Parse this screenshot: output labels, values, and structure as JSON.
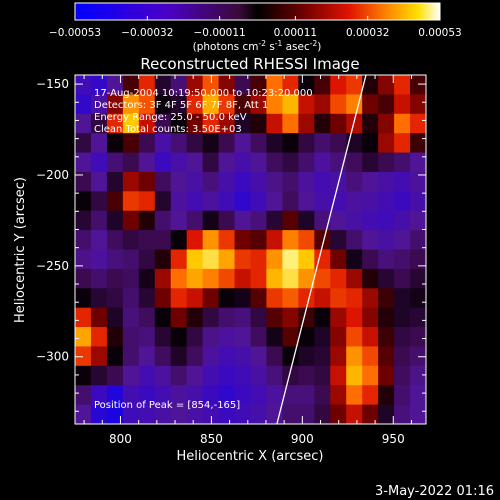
{
  "chart_data": {
    "type": "heatmap",
    "title": "Reconstructed RHESSI Image",
    "xlabel": "Heliocentric X (arcsec)",
    "ylabel": "Heliocentric Y (arcsec)",
    "xlim": [
      775,
      968
    ],
    "ylim": [
      -337,
      -145
    ],
    "x_ticks": [
      800,
      850,
      900,
      950
    ],
    "y_ticks": [
      -150,
      -200,
      -250,
      -300
    ],
    "colorbar": {
      "ticks": [
        "-0.00053",
        "-0.00032",
        "-0.00011",
        "0.00011",
        "0.00032",
        "0.00053"
      ],
      "tick_values": [
        -0.00053,
        -0.00032,
        -0.00011,
        0.00011,
        0.00032,
        0.00053
      ],
      "range": [
        -0.00053,
        0.00053
      ],
      "label_main": "(photons cm",
      "label_exp1": "-2",
      "label_mid1": " s",
      "label_exp2": "-1",
      "label_mid2": " asec",
      "label_exp3": "-2",
      "label_end": ")"
    },
    "annotations": [
      "17-Aug-2004 10:19:50.000 to 10:23:20.000",
      "Detectors: 3F 4F 5F 6F 7F 8F, Att 1",
      "Energy Range: 25.0 - 50.0 keV",
      "Clean     Total counts: 3.50E+03"
    ],
    "peak_label": "Position of Peak = [854,-165]",
    "peak_position": [
      854,
      -165
    ],
    "limb_line": [
      [
        886,
        -337
      ],
      [
        935,
        -145
      ]
    ],
    "grid_x": 22,
    "grid_y": 18,
    "map": [
      [
        0.2,
        0.15,
        0.3,
        0.55,
        0.7,
        0.45,
        0.35,
        0.62,
        0.75,
        0.6,
        0.4,
        0.55,
        0.78,
        0.7,
        0.5,
        0.55,
        0.68,
        0.72,
        0.52,
        0.6,
        0.7,
        0.55
      ],
      [
        0.15,
        0.25,
        0.6,
        0.82,
        0.75,
        0.5,
        0.45,
        0.7,
        0.85,
        0.72,
        0.55,
        0.62,
        0.8,
        0.86,
        0.66,
        0.62,
        0.74,
        0.8,
        0.58,
        0.55,
        0.66,
        0.6
      ],
      [
        0.3,
        0.42,
        0.7,
        0.88,
        0.66,
        0.4,
        0.5,
        0.58,
        0.7,
        0.62,
        0.46,
        0.52,
        0.66,
        0.78,
        0.62,
        0.52,
        0.58,
        0.64,
        0.52,
        0.6,
        0.78,
        0.7
      ],
      [
        0.42,
        0.3,
        0.5,
        0.55,
        0.4,
        0.25,
        0.35,
        0.42,
        0.48,
        0.4,
        0.3,
        0.38,
        0.46,
        0.5,
        0.42,
        0.36,
        0.4,
        0.46,
        0.5,
        0.62,
        0.7,
        0.54
      ],
      [
        0.3,
        0.2,
        0.35,
        0.4,
        0.3,
        0.18,
        0.25,
        0.3,
        0.42,
        0.3,
        0.24,
        0.3,
        0.38,
        0.42,
        0.36,
        0.28,
        0.34,
        0.38,
        0.44,
        0.4,
        0.36,
        0.3
      ],
      [
        0.4,
        0.3,
        0.45,
        0.62,
        0.58,
        0.38,
        0.3,
        0.26,
        0.34,
        0.24,
        0.18,
        0.24,
        0.32,
        0.36,
        0.28,
        0.22,
        0.26,
        0.34,
        0.3,
        0.26,
        0.22,
        0.28
      ],
      [
        0.5,
        0.42,
        0.55,
        0.72,
        0.7,
        0.45,
        0.28,
        0.22,
        0.28,
        0.2,
        0.14,
        0.2,
        0.3,
        0.38,
        0.3,
        0.24,
        0.22,
        0.28,
        0.26,
        0.22,
        0.18,
        0.24
      ],
      [
        0.44,
        0.36,
        0.46,
        0.58,
        0.52,
        0.36,
        0.3,
        0.36,
        0.48,
        0.4,
        0.3,
        0.34,
        0.44,
        0.56,
        0.46,
        0.34,
        0.3,
        0.26,
        0.22,
        0.2,
        0.24,
        0.3
      ],
      [
        0.36,
        0.3,
        0.38,
        0.42,
        0.4,
        0.4,
        0.5,
        0.68,
        0.82,
        0.72,
        0.58,
        0.56,
        0.66,
        0.8,
        0.74,
        0.56,
        0.44,
        0.36,
        0.3,
        0.26,
        0.3,
        0.36
      ],
      [
        0.32,
        0.28,
        0.34,
        0.36,
        0.42,
        0.52,
        0.7,
        0.88,
        0.92,
        0.84,
        0.72,
        0.7,
        0.82,
        0.95,
        0.88,
        0.7,
        0.58,
        0.48,
        0.4,
        0.34,
        0.36,
        0.4
      ],
      [
        0.4,
        0.36,
        0.4,
        0.38,
        0.48,
        0.62,
        0.78,
        0.84,
        0.8,
        0.74,
        0.66,
        0.7,
        0.86,
        0.92,
        0.82,
        0.74,
        0.7,
        0.62,
        0.52,
        0.44,
        0.4,
        0.44
      ],
      [
        0.5,
        0.44,
        0.42,
        0.36,
        0.44,
        0.58,
        0.7,
        0.66,
        0.58,
        0.5,
        0.48,
        0.56,
        0.72,
        0.76,
        0.7,
        0.66,
        0.72,
        0.7,
        0.62,
        0.54,
        0.46,
        0.48
      ],
      [
        0.7,
        0.58,
        0.46,
        0.34,
        0.38,
        0.5,
        0.58,
        0.52,
        0.42,
        0.36,
        0.34,
        0.42,
        0.56,
        0.6,
        0.54,
        0.5,
        0.62,
        0.68,
        0.6,
        0.52,
        0.46,
        0.44
      ],
      [
        0.84,
        0.7,
        0.52,
        0.36,
        0.34,
        0.44,
        0.5,
        0.42,
        0.32,
        0.28,
        0.3,
        0.38,
        0.48,
        0.56,
        0.5,
        0.46,
        0.6,
        0.74,
        0.66,
        0.54,
        0.42,
        0.4
      ],
      [
        0.72,
        0.62,
        0.5,
        0.36,
        0.3,
        0.38,
        0.46,
        0.38,
        0.28,
        0.22,
        0.24,
        0.3,
        0.4,
        0.5,
        0.46,
        0.44,
        0.62,
        0.82,
        0.74,
        0.56,
        0.4,
        0.36
      ],
      [
        0.5,
        0.44,
        0.4,
        0.3,
        0.22,
        0.28,
        0.36,
        0.3,
        0.22,
        0.18,
        0.2,
        0.26,
        0.34,
        0.42,
        0.4,
        0.42,
        0.66,
        0.86,
        0.78,
        0.58,
        0.38,
        0.32
      ],
      [
        0.36,
        0.18,
        0.1,
        0.22,
        0.18,
        0.22,
        0.28,
        0.24,
        0.18,
        0.14,
        0.18,
        0.22,
        0.28,
        0.34,
        0.34,
        0.4,
        0.62,
        0.78,
        0.7,
        0.52,
        0.36,
        0.3
      ],
      [
        0.3,
        0.12,
        0.08,
        0.2,
        0.22,
        0.26,
        0.3,
        0.26,
        0.22,
        0.18,
        0.2,
        0.24,
        0.3,
        0.36,
        0.36,
        0.42,
        0.58,
        0.66,
        0.58,
        0.46,
        0.34,
        0.3
      ]
    ]
  },
  "footer": {
    "timestamp": "3-May-2022 01:16"
  },
  "colors": {
    "background": "#000000",
    "text": "#ffffff",
    "limb_line": "#ffffff"
  }
}
